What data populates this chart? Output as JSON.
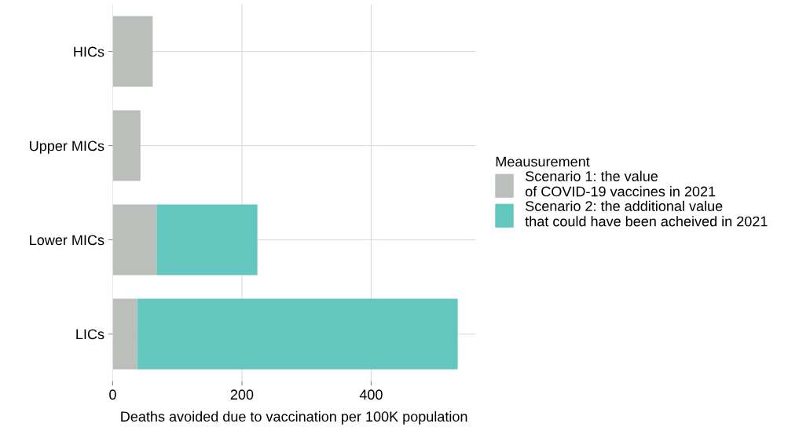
{
  "chart_data": {
    "type": "bar",
    "orientation": "horizontal",
    "stacked": true,
    "categories": [
      "HICs",
      "Upper MICs",
      "Lower MICs",
      "LICs"
    ],
    "series": [
      {
        "name": "Scenario 1: the value\nof COVID-19 vaccines in 2021",
        "color": "#bbbfbc",
        "values": [
          62,
          43,
          68,
          38
        ]
      },
      {
        "name": "Scenario 2: the additional value\nthat could have been acheived in 2021",
        "color": "#63c7c0",
        "values": [
          0,
          0,
          156,
          496
        ]
      }
    ],
    "xlabel": "Deaths avoided due to vaccination per 100K population",
    "legend_title": "Meausurement",
    "xlim": [
      0,
      561
    ],
    "xticks": [
      0,
      200,
      400
    ],
    "grid": true,
    "legend": "right"
  }
}
